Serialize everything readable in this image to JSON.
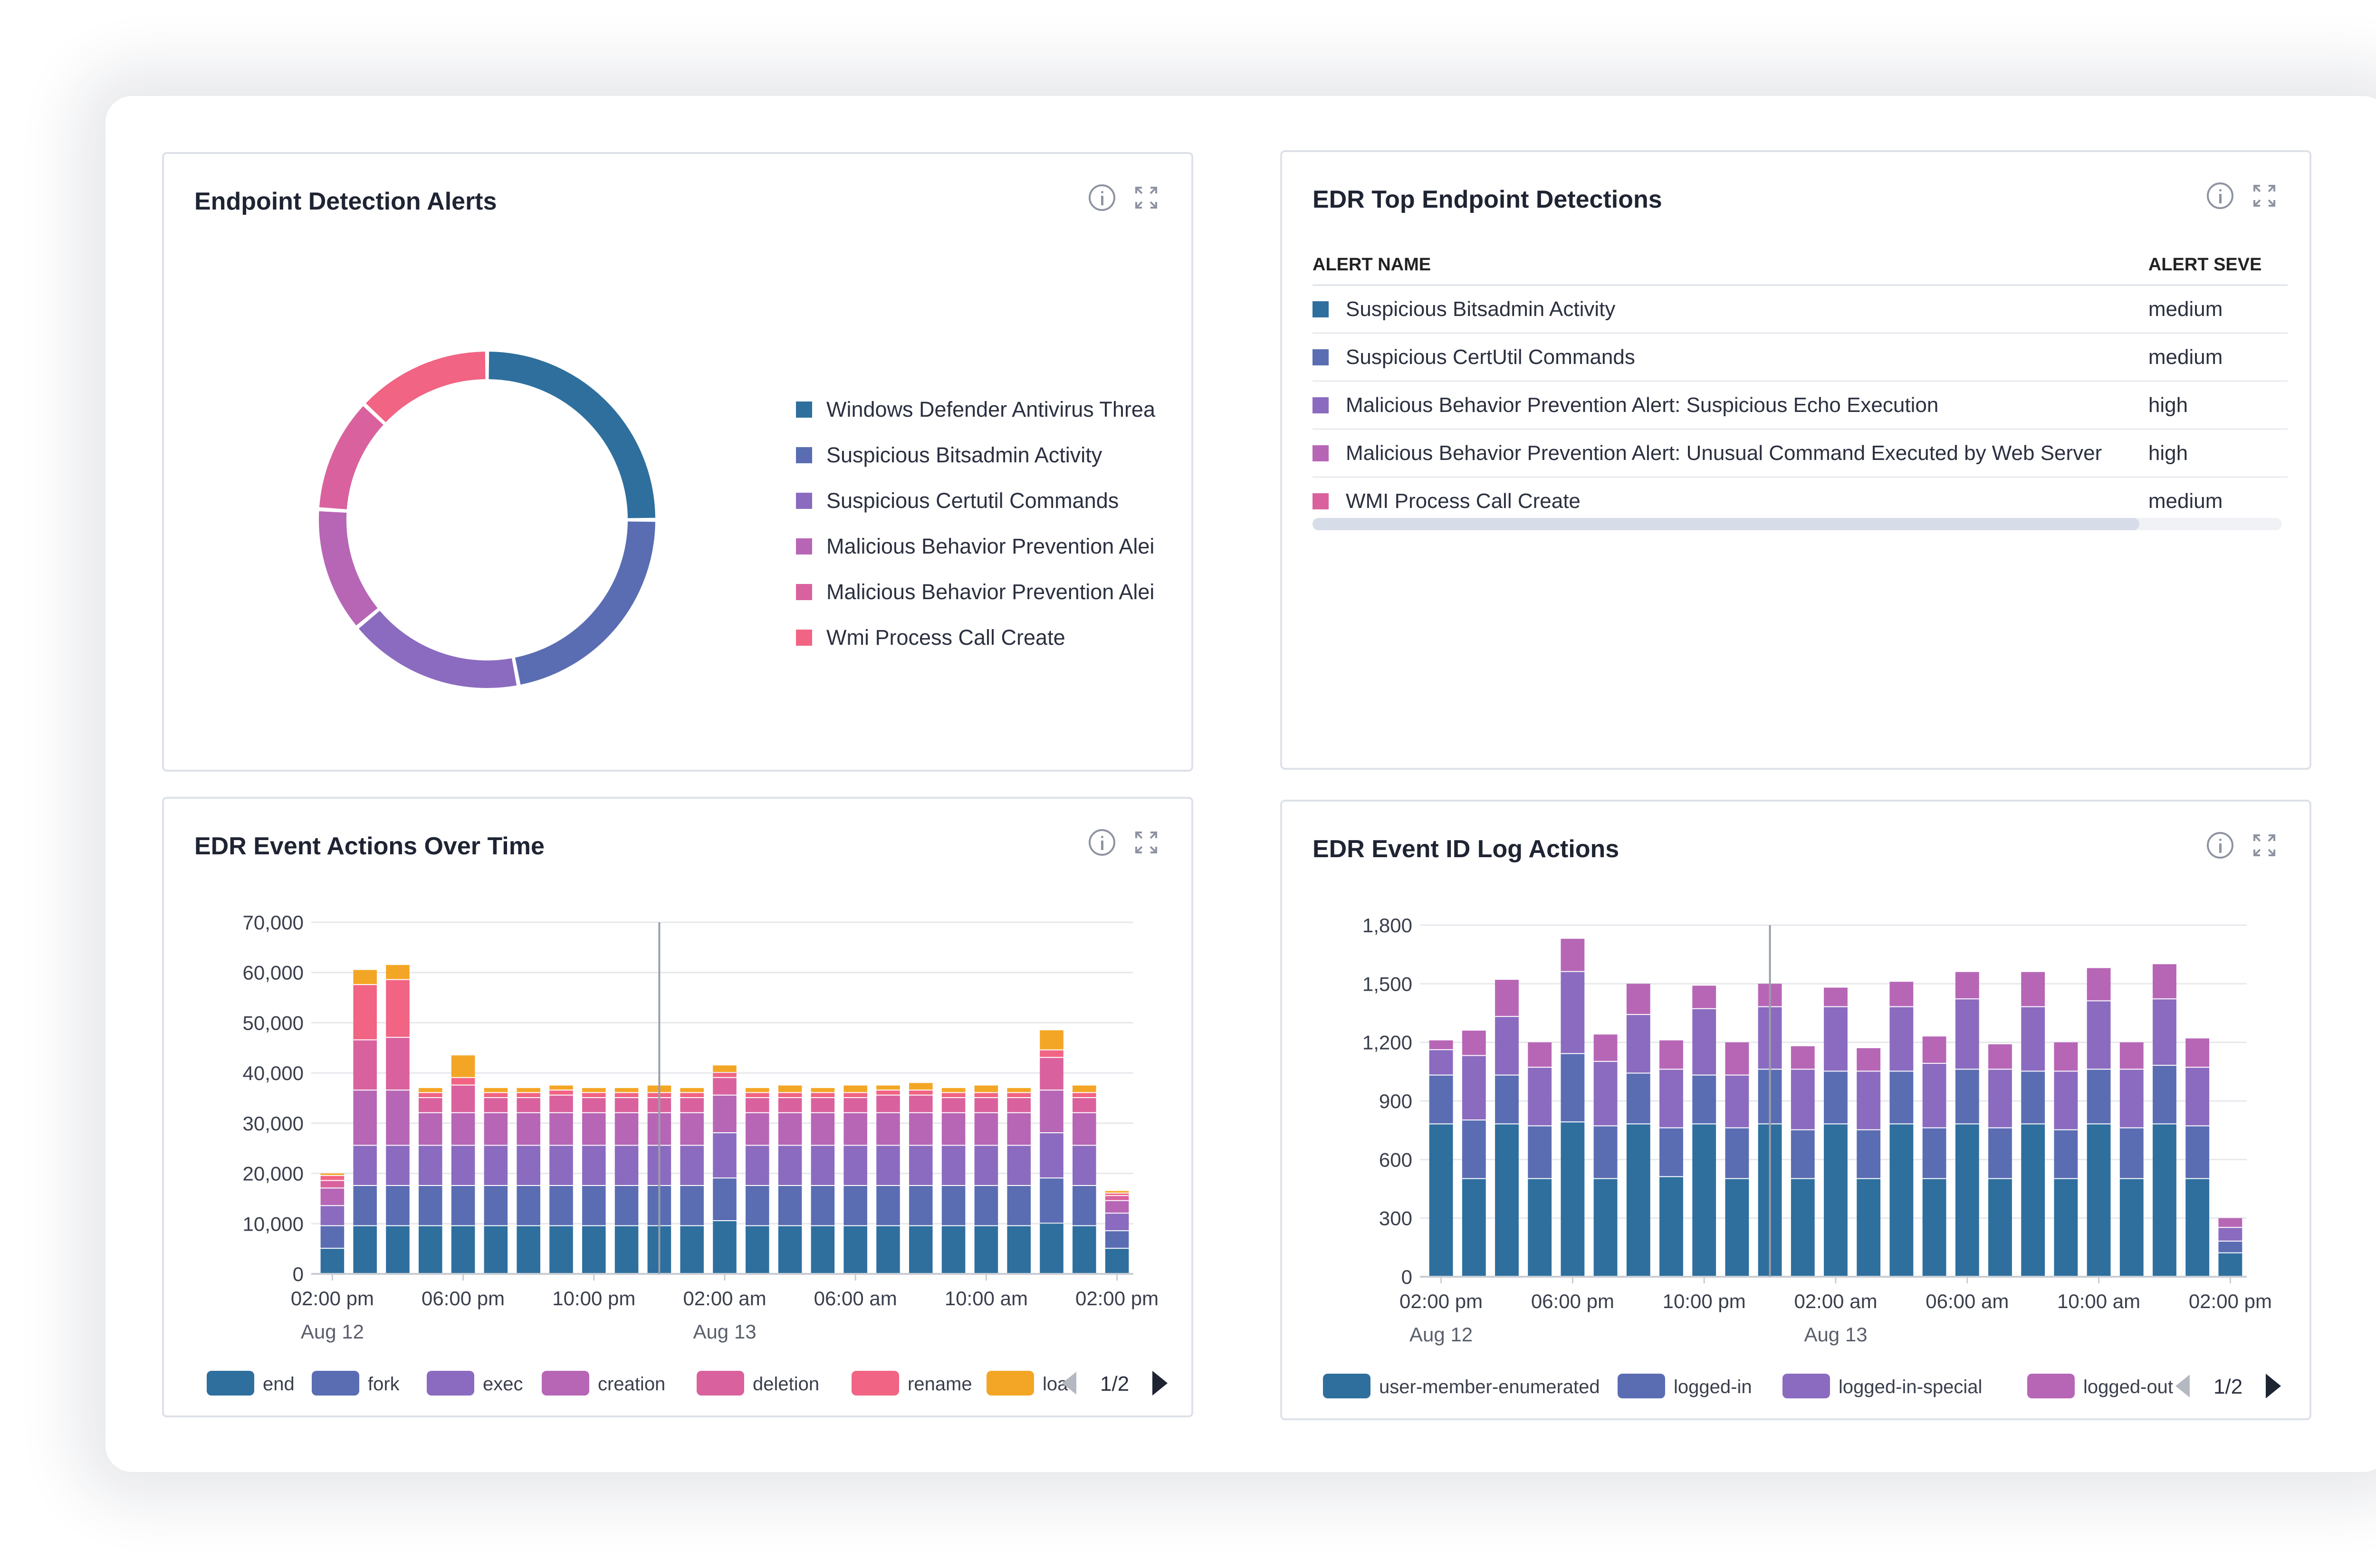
{
  "colors": {
    "end": "#2e6f9e",
    "fork": "#5a6db3",
    "exec": "#8b6bbf",
    "creation": "#b766b6",
    "deletion": "#d9629e",
    "rename": "#f16483",
    "other": "#f3a625"
  },
  "panels": {
    "alerts": {
      "title": "Endpoint Detection Alerts"
    },
    "top": {
      "title": "EDR Top Endpoint Detections"
    },
    "actions": {
      "title": "EDR Event Actions Over Time"
    },
    "logs": {
      "title": "EDR Event ID Log Actions"
    }
  },
  "donut_legend": [
    {
      "label": "Windows Defender Antivirus Threa",
      "color": "#2e6f9e"
    },
    {
      "label": "Suspicious Bitsadmin Activity",
      "color": "#5a6db3"
    },
    {
      "label": "Suspicious Certutil Commands",
      "color": "#8b6bbf"
    },
    {
      "label": "Malicious Behavior Prevention Alei",
      "color": "#b766b6"
    },
    {
      "label": "Malicious Behavior Prevention Alei",
      "color": "#d9629e"
    },
    {
      "label": "Wmi Process Call Create",
      "color": "#f16483"
    }
  ],
  "table": {
    "headers": [
      "ALERT NAME",
      "ALERT SEVE"
    ],
    "rows": [
      {
        "name": "Suspicious Bitsadmin Activity",
        "severity": "medium",
        "color": "#2e6f9e"
      },
      {
        "name": "Suspicious CertUtil Commands",
        "severity": "medium",
        "color": "#5a6db3"
      },
      {
        "name": "Malicious Behavior Prevention Alert: Suspicious Echo Execution",
        "severity": "high",
        "color": "#8b6bbf"
      },
      {
        "name": "Malicious Behavior Prevention Alert: Unusual Command Executed by Web Server",
        "severity": "high",
        "color": "#b766b6"
      },
      {
        "name": "WMI Process Call Create",
        "severity": "medium",
        "color": "#d9629e"
      }
    ]
  },
  "chart_data": [
    {
      "type": "pie",
      "subtype": "donut",
      "labels": [
        "Windows Defender Antivirus Threa",
        "Suspicious Bitsadmin Activity",
        "Suspicious Certutil Commands",
        "Malicious Behavior Prevention Alei",
        "Malicious Behavior Prevention Alei",
        "Wmi Process Call Create"
      ],
      "values": [
        25,
        22,
        17,
        12,
        11,
        13
      ],
      "colors": [
        "#2e6f9e",
        "#5a6db3",
        "#8b6bbf",
        "#b766b6",
        "#d9629e",
        "#f16483"
      ]
    },
    {
      "type": "bar",
      "stacked": true,
      "ylim": [
        0,
        70000
      ],
      "yticks": [
        "0",
        "10,000",
        "20,000",
        "30,000",
        "40,000",
        "50,000",
        "60,000",
        "70,000"
      ],
      "xticks": [
        {
          "i": 0,
          "label": "02:00 pm",
          "sub": "Aug 12"
        },
        {
          "i": 4,
          "label": "06:00 pm"
        },
        {
          "i": 8,
          "label": "10:00 pm"
        },
        {
          "i": 12,
          "label": "02:00 am",
          "sub": "Aug 13"
        },
        {
          "i": 16,
          "label": "06:00 am"
        },
        {
          "i": 20,
          "label": "10:00 am"
        },
        {
          "i": 24,
          "label": "02:00 pm"
        }
      ],
      "marker_index": 10,
      "legend": [
        {
          "name": "end",
          "color": "#2e6f9e"
        },
        {
          "name": "fork",
          "color": "#5a6db3"
        },
        {
          "name": "exec",
          "color": "#8b6bbf"
        },
        {
          "name": "creation",
          "color": "#b766b6"
        },
        {
          "name": "deletion",
          "color": "#d9629e"
        },
        {
          "name": "rename",
          "color": "#f16483"
        },
        {
          "name": "loa",
          "color": "#f3a625"
        }
      ],
      "legend_page": "1/2",
      "series": [
        {
          "name": "end",
          "color": "#2e6f9e",
          "values": [
            5000,
            9500,
            9500,
            9500,
            9500,
            9500,
            9500,
            9500,
            9500,
            9500,
            9500,
            9500,
            10500,
            9500,
            9500,
            9500,
            9500,
            9500,
            9500,
            9500,
            9500,
            9500,
            10000,
            9500,
            5000
          ]
        },
        {
          "name": "fork",
          "color": "#5a6db3",
          "values": [
            4500,
            8000,
            8000,
            8000,
            8000,
            8000,
            8000,
            8000,
            8000,
            8000,
            8000,
            8000,
            8500,
            8000,
            8000,
            8000,
            8000,
            8000,
            8000,
            8000,
            8000,
            8000,
            9000,
            8000,
            3500
          ]
        },
        {
          "name": "exec",
          "color": "#8b6bbf",
          "values": [
            4000,
            8000,
            8000,
            8000,
            8000,
            8000,
            8000,
            8000,
            8000,
            8000,
            8000,
            8000,
            9000,
            8000,
            8000,
            8000,
            8000,
            8000,
            8000,
            8000,
            8000,
            8000,
            9000,
            8000,
            3500
          ]
        },
        {
          "name": "creation",
          "color": "#b766b6",
          "values": [
            3500,
            11000,
            11000,
            6500,
            6500,
            6500,
            6500,
            6500,
            6500,
            6500,
            6500,
            6500,
            7500,
            6500,
            6500,
            6500,
            6500,
            6500,
            6500,
            6500,
            6500,
            6500,
            8500,
            6500,
            2500
          ]
        },
        {
          "name": "deletion",
          "color": "#d9629e",
          "values": [
            1500,
            10000,
            10500,
            3000,
            5500,
            3000,
            3000,
            3500,
            3000,
            3000,
            3000,
            3000,
            3500,
            3000,
            3000,
            3000,
            3000,
            3500,
            3500,
            3000,
            3000,
            3000,
            6500,
            3000,
            1000
          ]
        },
        {
          "name": "rename",
          "color": "#f16483",
          "values": [
            1000,
            11000,
            11500,
            1000,
            1500,
            1000,
            1000,
            1000,
            1000,
            1000,
            1000,
            1000,
            1000,
            1000,
            1000,
            1000,
            1000,
            1000,
            1000,
            1000,
            1000,
            1000,
            1500,
            1000,
            500
          ]
        },
        {
          "name": "loa",
          "color": "#f3a625",
          "values": [
            500,
            3000,
            3000,
            1000,
            4500,
            1000,
            1000,
            1000,
            1000,
            1000,
            1500,
            1000,
            1500,
            1000,
            1500,
            1000,
            1500,
            1000,
            1500,
            1000,
            1500,
            1000,
            4000,
            1500,
            500
          ]
        }
      ]
    },
    {
      "type": "bar",
      "stacked": true,
      "ylim": [
        0,
        1800
      ],
      "yticks": [
        "0",
        "300",
        "600",
        "900",
        "1,200",
        "1,500",
        "1,800"
      ],
      "xticks": [
        {
          "i": 0,
          "label": "02:00 pm",
          "sub": "Aug 12"
        },
        {
          "i": 4,
          "label": "06:00 pm"
        },
        {
          "i": 8,
          "label": "10:00 pm"
        },
        {
          "i": 12,
          "label": "02:00 am",
          "sub": "Aug 13"
        },
        {
          "i": 16,
          "label": "06:00 am"
        },
        {
          "i": 20,
          "label": "10:00 am"
        },
        {
          "i": 24,
          "label": "02:00 pm"
        }
      ],
      "marker_index": 10,
      "legend": [
        {
          "name": "user-member-enumerated",
          "color": "#2e6f9e"
        },
        {
          "name": "logged-in",
          "color": "#5a6db3"
        },
        {
          "name": "logged-in-special",
          "color": "#8b6bbf"
        },
        {
          "name": "logged-out",
          "color": "#b766b6"
        }
      ],
      "legend_page": "1/2",
      "series": [
        {
          "name": "user-member-enumerated",
          "color": "#2e6f9e",
          "values": [
            780,
            500,
            780,
            500,
            790,
            500,
            780,
            510,
            780,
            500,
            780,
            500,
            780,
            500,
            780,
            500,
            780,
            500,
            780,
            500,
            780,
            500,
            780,
            500,
            120
          ]
        },
        {
          "name": "logged-in",
          "color": "#5a6db3",
          "values": [
            250,
            300,
            250,
            270,
            350,
            270,
            260,
            250,
            250,
            260,
            280,
            250,
            270,
            250,
            270,
            260,
            280,
            260,
            270,
            250,
            280,
            260,
            300,
            270,
            60
          ]
        },
        {
          "name": "logged-in-special",
          "color": "#8b6bbf",
          "values": [
            130,
            330,
            300,
            300,
            420,
            330,
            300,
            300,
            340,
            270,
            320,
            310,
            330,
            300,
            330,
            330,
            360,
            300,
            330,
            300,
            350,
            300,
            340,
            300,
            70
          ]
        },
        {
          "name": "logged-out",
          "color": "#b766b6",
          "values": [
            50,
            130,
            190,
            130,
            170,
            140,
            160,
            150,
            120,
            170,
            120,
            120,
            100,
            120,
            130,
            140,
            140,
            130,
            180,
            150,
            170,
            140,
            180,
            150,
            50
          ]
        }
      ]
    }
  ]
}
